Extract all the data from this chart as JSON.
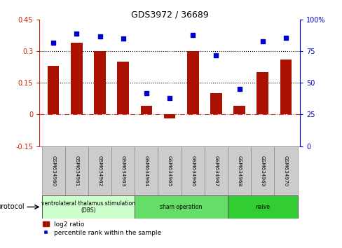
{
  "title": "GDS3972 / 36689",
  "samples": [
    "GSM634960",
    "GSM634961",
    "GSM634962",
    "GSM634963",
    "GSM634964",
    "GSM634965",
    "GSM634966",
    "GSM634967",
    "GSM634968",
    "GSM634969",
    "GSM634970"
  ],
  "log2_ratio": [
    0.23,
    0.34,
    0.3,
    0.25,
    0.04,
    -0.02,
    0.3,
    0.1,
    0.04,
    0.2,
    0.26
  ],
  "percentile_rank": [
    82,
    89,
    87,
    85,
    42,
    38,
    88,
    72,
    45,
    83,
    86
  ],
  "bar_color": "#aa1100",
  "dot_color": "#0000cc",
  "ylim_left": [
    -0.15,
    0.45
  ],
  "ylim_right": [
    0,
    100
  ],
  "yticks_left": [
    -0.15,
    0,
    0.15,
    0.3,
    0.45
  ],
  "yticks_right": [
    0,
    25,
    50,
    75,
    100
  ],
  "ytick_labels_left": [
    "-0.15",
    "0",
    "0.15",
    "0.3",
    "0.45"
  ],
  "ytick_labels_right": [
    "0",
    "25",
    "50",
    "75",
    "100%"
  ],
  "hlines": [
    0.15,
    0.3
  ],
  "hline_zero_color": "#cc3333",
  "hline_color": "#000000",
  "groups": [
    {
      "label": "ventrolateral thalamus stimulation\n(DBS)",
      "start": 0,
      "end": 3,
      "color": "#ccffcc"
    },
    {
      "label": "sham operation",
      "start": 4,
      "end": 7,
      "color": "#66dd66"
    },
    {
      "label": "naive",
      "start": 8,
      "end": 10,
      "color": "#33cc33"
    }
  ],
  "protocol_label": "protocol",
  "legend_bar_label": "log2 ratio",
  "legend_dot_label": "percentile rank within the sample",
  "background_color": "#ffffff",
  "plot_bg_color": "#ffffff",
  "left_axis_color": "#cc2200",
  "right_axis_color": "#0000cc",
  "sample_box_color": "#cccccc",
  "sample_box_edge": "#888888"
}
